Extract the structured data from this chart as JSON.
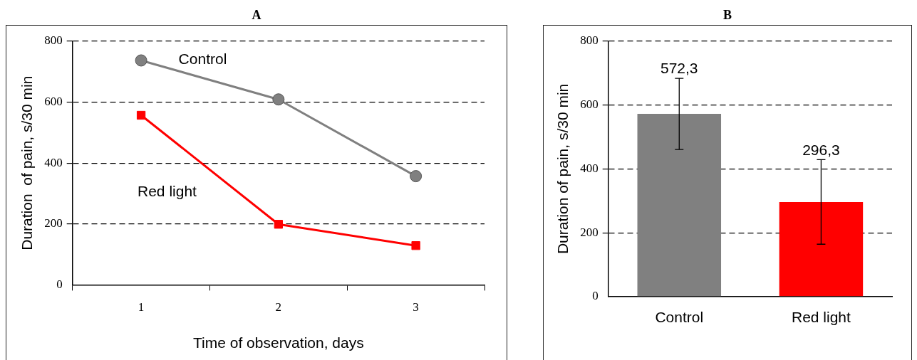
{
  "chart_data": [
    {
      "type": "line",
      "title": "A",
      "categories": [
        "1",
        "2",
        "3"
      ],
      "xlabel": "Time of observation, days",
      "ylabel": "Duration  of pain, s/30 min",
      "ylim": [
        0,
        800
      ],
      "yticks": [
        0,
        200,
        400,
        600,
        800
      ],
      "grid": "y",
      "legend": false,
      "line_style": "solid",
      "series": [
        {
          "name": "Control",
          "color": "#808080",
          "marker": "circle",
          "values": [
            737,
            609,
            357
          ]
        },
        {
          "name": "Red light",
          "color": "#ff0000",
          "marker": "square",
          "values": [
            557,
            199,
            129
          ]
        }
      ]
    },
    {
      "type": "bar",
      "title": "B",
      "categories": [
        "Control",
        "Red light"
      ],
      "ylabel": "Duration of pain, s/30 min",
      "ylim": [
        0,
        800
      ],
      "yticks": [
        0,
        200,
        400,
        600,
        800
      ],
      "grid": "y",
      "legend": false,
      "values": [
        572.3,
        296.3
      ],
      "colors": [
        "#808080",
        "#ff0000"
      ],
      "errors": [
        [
          461,
          684
        ],
        [
          164,
          429
        ]
      ],
      "value_labels": [
        "572,3",
        "296,3"
      ]
    }
  ]
}
